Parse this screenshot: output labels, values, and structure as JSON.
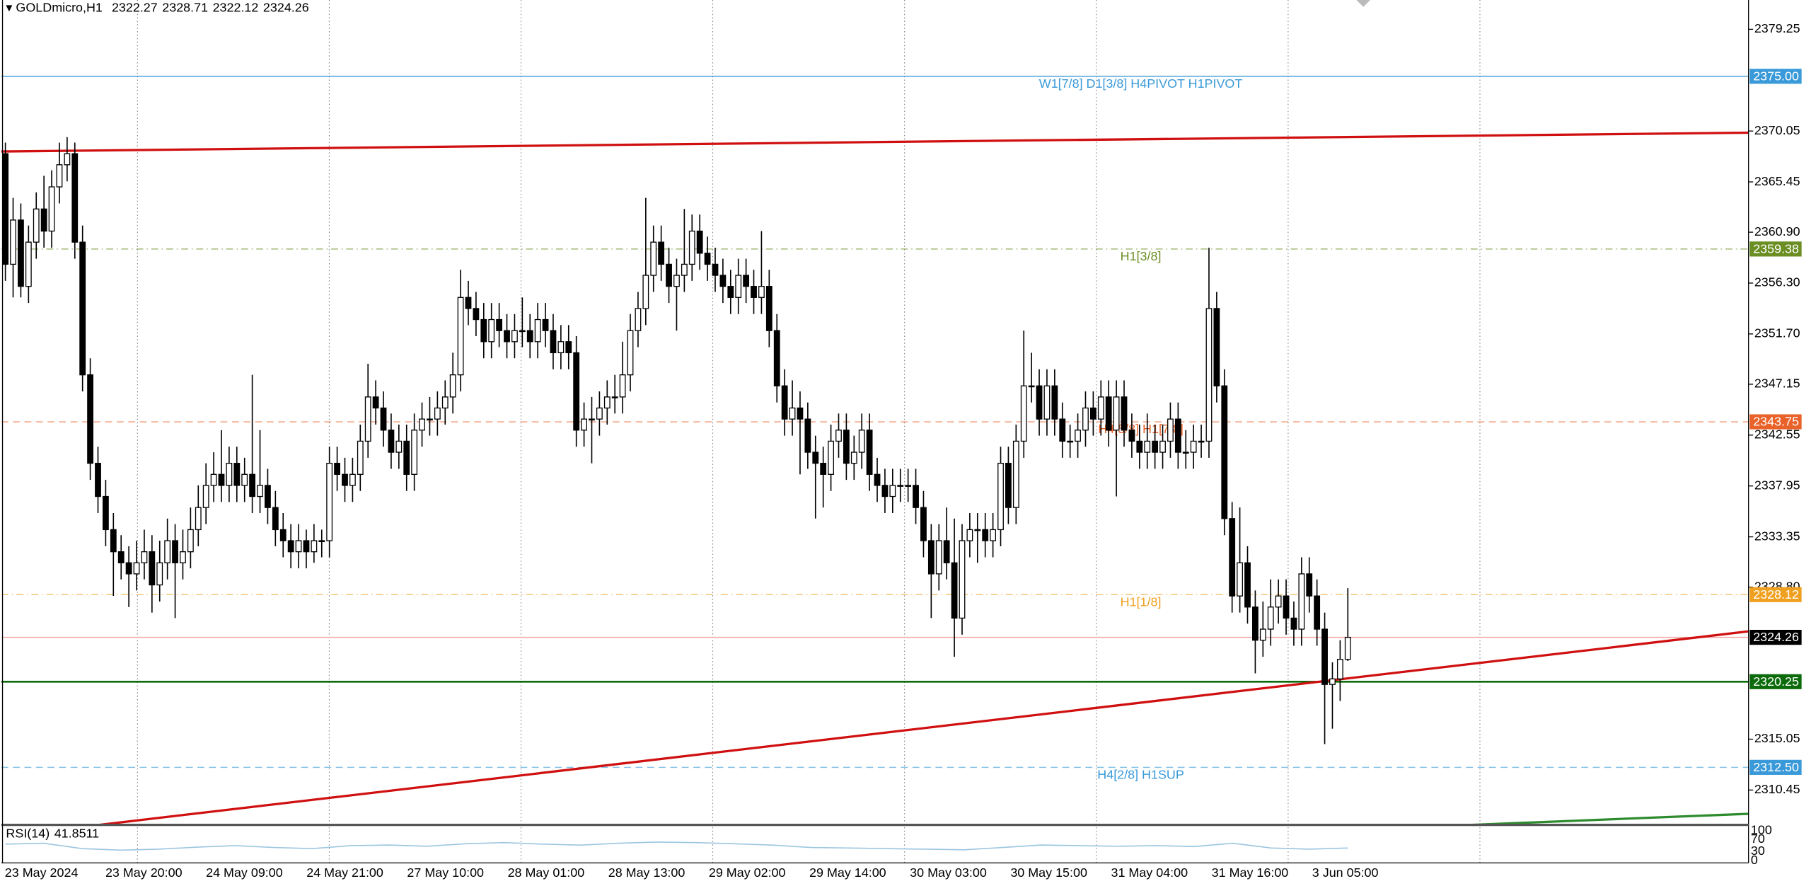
{
  "header": {
    "symbol": "GOLDmicro,H1"
  },
  "chart_data": {
    "type": "candlestick",
    "ylim": [
      2307.3,
      2381.9
    ],
    "yticks": [
      2379.25,
      2370.05,
      2365.45,
      {
        "value": 2360.9,
        "label": "2360.90"
      },
      {
        "value": 2356.3,
        "label": "2356.30"
      },
      {
        "value": 2351.7,
        "label": "2351.70"
      },
      2347.15,
      2342.55,
      2337.95,
      2333.35,
      {
        "value": 2328.8,
        "label": "2328.80"
      },
      2315.05,
      2310.45
    ],
    "categories": [
      "23 May 2024",
      "23 May 20:00",
      "24 May 09:00",
      "24 May 21:00",
      "27 May 10:00",
      "28 May 01:00",
      "28 May 13:00",
      "29 May 02:00",
      "29 May 14:00",
      "30 May 03:00",
      "30 May 15:00",
      "31 May 04:00",
      "31 May 16:00",
      "3 Jun 05:00"
    ],
    "up_color": "#ffffff",
    "down_color": "#000000",
    "levels": [
      {
        "value": 2375,
        "label": "2375.00",
        "text": "W1[7/8] D1[3/8] H4PIVOT H1PIVOT",
        "color": "#3a9ad9",
        "dash": ""
      },
      {
        "value": 2359.38,
        "label": "2359.38",
        "text": "H1[3/8]",
        "color": "#6b8e23",
        "dash": "6 3 1 3"
      },
      {
        "value": 2343.75,
        "label": "2343.75",
        "text": "H4[5/8] H1[7/8]",
        "color": "#e8622a",
        "dash": "6 4"
      },
      {
        "value": 2328.12,
        "label": "2328.12",
        "text": "H1[1/8]",
        "color": "#f0a020",
        "dash": "6 3 1 3"
      },
      {
        "value": 2324.26,
        "color": "#000000",
        "dash": ""
      },
      {
        "value": 2320.25,
        "label": "2320.25",
        "color": "#0b6b0b",
        "dash": ""
      },
      {
        "value": 2312.5,
        "label": "2312.50",
        "text": "H4[2/8] H1SUP",
        "color": "#3a9ad9",
        "dash": "6 4"
      }
    ],
    "trendlines": [
      {
        "color": "#d01010",
        "start": 2368.2,
        "end": 2369.9
      },
      {
        "color": "#d01010",
        "start": 2307.3,
        "end": 2324.8
      },
      {
        "color": "#2e8b2e",
        "start": 2307.3,
        "end": 2308.3
      }
    ],
    "candles": [
      [
        2368,
        2369,
        2356.5,
        2358
      ],
      [
        2358,
        2364,
        2355,
        2362
      ],
      [
        2362,
        2363.5,
        2355,
        2356
      ],
      [
        2356,
        2361.5,
        2354.5,
        2360
      ],
      [
        2360,
        2364.5,
        2358.5,
        2363
      ],
      [
        2363,
        2366,
        2359.5,
        2361
      ],
      [
        2361,
        2366.5,
        2359.5,
        2365
      ],
      [
        2365,
        2369,
        2363.5,
        2367
      ],
      [
        2367,
        2369.5,
        2365.5,
        2368
      ],
      [
        2368,
        2369,
        2358.5,
        2360
      ],
      [
        2360,
        2361.5,
        2346.5,
        2348
      ],
      [
        2348,
        2349.5,
        2338.5,
        2340
      ],
      [
        2340,
        2341.5,
        2335.5,
        2337
      ],
      [
        2337,
        2338.5,
        2332.5,
        2334
      ],
      [
        2334,
        2335.5,
        2328,
        2332
      ],
      [
        2332,
        2333.5,
        2329.5,
        2331
      ],
      [
        2331,
        2332.5,
        2327,
        2330
      ],
      [
        2330,
        2333,
        2328.5,
        2331
      ],
      [
        2331,
        2334,
        2329.5,
        2332
      ],
      [
        2332,
        2333.5,
        2326.5,
        2329
      ],
      [
        2329,
        2333,
        2327.5,
        2331
      ],
      [
        2331,
        2335,
        2329.5,
        2333
      ],
      [
        2333,
        2334.5,
        2326,
        2331
      ],
      [
        2331,
        2334,
        2329.5,
        2332
      ],
      [
        2332,
        2336,
        2330.5,
        2334
      ],
      [
        2334,
        2338,
        2332.5,
        2336
      ],
      [
        2336,
        2340,
        2334.5,
        2338
      ],
      [
        2338,
        2341,
        2336.5,
        2339
      ],
      [
        2339,
        2343,
        2336.5,
        2338
      ],
      [
        2338,
        2341.5,
        2336.5,
        2340
      ],
      [
        2340,
        2341.5,
        2336.5,
        2338
      ],
      [
        2338,
        2340.5,
        2336.5,
        2339
      ],
      [
        2339,
        2348,
        2335.5,
        2337
      ],
      [
        2337,
        2343,
        2335.5,
        2338
      ],
      [
        2338,
        2339.5,
        2334.5,
        2336
      ],
      [
        2336,
        2337.5,
        2332.5,
        2334
      ],
      [
        2334,
        2335.5,
        2331.5,
        2333
      ],
      [
        2333,
        2334.5,
        2330.5,
        2332
      ],
      [
        2332,
        2334.5,
        2330.5,
        2333
      ],
      [
        2333,
        2334,
        2330.5,
        2332
      ],
      [
        2332,
        2334.5,
        2331,
        2333
      ],
      [
        2333,
        2334,
        2331.5,
        2333
      ],
      [
        2333,
        2341.5,
        2331.5,
        2340
      ],
      [
        2340,
        2341.5,
        2337.5,
        2339
      ],
      [
        2339,
        2340.5,
        2336.5,
        2338
      ],
      [
        2338,
        2340.5,
        2336.5,
        2339
      ],
      [
        2339,
        2343.5,
        2337.5,
        2342
      ],
      [
        2342,
        2349,
        2340.5,
        2346
      ],
      [
        2346,
        2347.5,
        2343.5,
        2345
      ],
      [
        2345,
        2346.5,
        2341.5,
        2343
      ],
      [
        2343,
        2344.5,
        2339.5,
        2341
      ],
      [
        2341,
        2343.5,
        2339.5,
        2342
      ],
      [
        2342,
        2343.5,
        2337.5,
        2339
      ],
      [
        2339,
        2344.5,
        2337.5,
        2343
      ],
      [
        2343,
        2345.5,
        2341.5,
        2344
      ],
      [
        2344,
        2346,
        2342.5,
        2344
      ],
      [
        2344,
        2346.5,
        2342.5,
        2345
      ],
      [
        2345,
        2347.5,
        2343.5,
        2346
      ],
      [
        2346,
        2350,
        2344.5,
        2348
      ],
      [
        2348,
        2357.5,
        2346.5,
        2355
      ],
      [
        2355,
        2356.5,
        2352.5,
        2354
      ],
      [
        2354,
        2355.5,
        2351.5,
        2353
      ],
      [
        2353,
        2354.5,
        2349.5,
        2351
      ],
      [
        2351,
        2354.5,
        2349.5,
        2353
      ],
      [
        2353,
        2354.5,
        2350.5,
        2352
      ],
      [
        2352,
        2353.5,
        2349.5,
        2351
      ],
      [
        2351,
        2353.5,
        2349.5,
        2352
      ],
      [
        2352,
        2355,
        2350.5,
        2352
      ],
      [
        2352,
        2353.5,
        2349.5,
        2351
      ],
      [
        2351,
        2354.5,
        2349.5,
        2353
      ],
      [
        2353,
        2354.5,
        2350.5,
        2352
      ],
      [
        2352,
        2353.5,
        2348.5,
        2350
      ],
      [
        2350,
        2352.5,
        2348.5,
        2351
      ],
      [
        2351,
        2352.5,
        2348.5,
        2350
      ],
      [
        2350,
        2351.5,
        2341.5,
        2343
      ],
      [
        2343,
        2345.5,
        2341.5,
        2344
      ],
      [
        2344,
        2346,
        2340,
        2344
      ],
      [
        2344,
        2346.5,
        2342.5,
        2345
      ],
      [
        2345,
        2347.5,
        2343.5,
        2346
      ],
      [
        2346,
        2348,
        2344.5,
        2346
      ],
      [
        2346,
        2351,
        2344.5,
        2348
      ],
      [
        2348,
        2353.5,
        2346.5,
        2352
      ],
      [
        2352,
        2355.5,
        2350.5,
        2354
      ],
      [
        2354,
        2364,
        2352.5,
        2357
      ],
      [
        2357,
        2361.5,
        2355.5,
        2360
      ],
      [
        2360,
        2361.5,
        2356.5,
        2358
      ],
      [
        2358,
        2359.5,
        2354.5,
        2356
      ],
      [
        2356,
        2358.5,
        2352,
        2357
      ],
      [
        2357,
        2363,
        2355.5,
        2358
      ],
      [
        2358,
        2362.5,
        2356.5,
        2361
      ],
      [
        2361,
        2362.5,
        2357.5,
        2359
      ],
      [
        2359,
        2360.5,
        2356.5,
        2358
      ],
      [
        2358,
        2359.5,
        2355.5,
        2357
      ],
      [
        2357,
        2358.5,
        2354.5,
        2356
      ],
      [
        2356,
        2357.5,
        2353.5,
        2355
      ],
      [
        2355,
        2358.5,
        2353.5,
        2357
      ],
      [
        2357,
        2358.5,
        2354.5,
        2356
      ],
      [
        2356,
        2357.5,
        2353.5,
        2355
      ],
      [
        2355,
        2361,
        2353.5,
        2356
      ],
      [
        2356,
        2357.5,
        2350.5,
        2352
      ],
      [
        2352,
        2353.5,
        2345.5,
        2347
      ],
      [
        2347,
        2348.5,
        2342.5,
        2344
      ],
      [
        2344,
        2347.5,
        2342.5,
        2345
      ],
      [
        2345,
        2346.5,
        2339,
        2344
      ],
      [
        2344,
        2345.5,
        2339.5,
        2341
      ],
      [
        2341,
        2342.5,
        2335,
        2340
      ],
      [
        2340,
        2341.5,
        2336,
        2339
      ],
      [
        2339,
        2343.5,
        2337.5,
        2342
      ],
      [
        2342,
        2344.5,
        2340.5,
        2343
      ],
      [
        2343,
        2344.5,
        2338.5,
        2340
      ],
      [
        2340,
        2342.5,
        2338.5,
        2341
      ],
      [
        2341,
        2344.5,
        2339.5,
        2343
      ],
      [
        2343,
        2344.5,
        2337.5,
        2339
      ],
      [
        2339,
        2340.5,
        2336.5,
        2338
      ],
      [
        2338,
        2339.5,
        2335.5,
        2337
      ],
      [
        2337,
        2339.5,
        2335.5,
        2338
      ],
      [
        2338,
        2339.5,
        2336.5,
        2338
      ],
      [
        2338,
        2339.5,
        2336.5,
        2338
      ],
      [
        2338,
        2339.5,
        2334.5,
        2336
      ],
      [
        2336,
        2337.5,
        2331.5,
        2333
      ],
      [
        2333,
        2334.5,
        2326,
        2330
      ],
      [
        2330,
        2334.5,
        2328.5,
        2333
      ],
      [
        2333,
        2336,
        2329.5,
        2331
      ],
      [
        2331,
        2335,
        2322.5,
        2326
      ],
      [
        2326,
        2334.5,
        2324.5,
        2333
      ],
      [
        2333,
        2335.5,
        2331.5,
        2334
      ],
      [
        2334,
        2335.5,
        2331,
        2334
      ],
      [
        2334,
        2335.5,
        2331.5,
        2333
      ],
      [
        2333,
        2335.5,
        2331.5,
        2334
      ],
      [
        2334,
        2341.5,
        2332.5,
        2340
      ],
      [
        2340,
        2341.5,
        2334.5,
        2336
      ],
      [
        2336,
        2343.5,
        2334.5,
        2342
      ],
      [
        2342,
        2352,
        2340.5,
        2347
      ],
      [
        2347,
        2350,
        2345.5,
        2347
      ],
      [
        2347,
        2348.5,
        2342.5,
        2344
      ],
      [
        2344,
        2348.5,
        2342.5,
        2347
      ],
      [
        2347,
        2348.5,
        2342.5,
        2344
      ],
      [
        2344,
        2345.5,
        2340.5,
        2342
      ],
      [
        2342,
        2343.5,
        2340.5,
        2342
      ],
      [
        2342,
        2344.5,
        2340.5,
        2343
      ],
      [
        2343,
        2346.5,
        2341.5,
        2345
      ],
      [
        2345,
        2346.5,
        2342.5,
        2344
      ],
      [
        2344,
        2347.5,
        2342.5,
        2346
      ],
      [
        2346,
        2347.5,
        2341.5,
        2343
      ],
      [
        2343,
        2347.5,
        2337,
        2346
      ],
      [
        2346,
        2347.5,
        2341.5,
        2343
      ],
      [
        2343,
        2344.5,
        2340.5,
        2342
      ],
      [
        2342,
        2343.5,
        2339.5,
        2341
      ],
      [
        2341,
        2344.5,
        2339.5,
        2342
      ],
      [
        2342,
        2343.5,
        2339.5,
        2341
      ],
      [
        2341,
        2343.5,
        2339.5,
        2342
      ],
      [
        2342,
        2345.5,
        2340.5,
        2344
      ],
      [
        2344,
        2345.5,
        2339.5,
        2341
      ],
      [
        2341,
        2343,
        2339.5,
        2341
      ],
      [
        2341,
        2343.5,
        2339.5,
        2342
      ],
      [
        2342,
        2343.5,
        2340.5,
        2342
      ],
      [
        2342,
        2359.5,
        2340.5,
        2354
      ],
      [
        2354,
        2355.5,
        2345.5,
        2347
      ],
      [
        2347,
        2348.5,
        2333.5,
        2335
      ],
      [
        2335,
        2336.5,
        2326.5,
        2328
      ],
      [
        2328,
        2336,
        2326.5,
        2331
      ],
      [
        2331,
        2332.5,
        2325.5,
        2327
      ],
      [
        2327,
        2328.5,
        2321,
        2324
      ],
      [
        2324,
        2327.5,
        2322.5,
        2325
      ],
      [
        2325,
        2329.5,
        2323.5,
        2327
      ],
      [
        2327,
        2329.5,
        2325.5,
        2328
      ],
      [
        2328,
        2329.5,
        2324.5,
        2326
      ],
      [
        2326,
        2327.5,
        2323.5,
        2325
      ],
      [
        2325,
        2331.5,
        2323.5,
        2330
      ],
      [
        2330,
        2331.5,
        2326.5,
        2328
      ],
      [
        2328,
        2329.5,
        2323.5,
        2325
      ],
      [
        2325,
        2326.5,
        2314.6,
        2320
      ],
      [
        2320,
        2322,
        2316,
        2320.5
      ],
      [
        2320.5,
        2324,
        2318.5,
        2322.27
      ],
      [
        2322.27,
        2328.71,
        2322.12,
        2324.26
      ]
    ],
    "rsi": {
      "name": "RSI(14)",
      "value": 41.8511,
      "color": "#9cc6e0",
      "ylim": [
        0,
        100
      ],
      "yticks": [
        100,
        70,
        30,
        0
      ],
      "values": [
        55,
        58,
        40,
        35,
        38,
        45,
        50,
        44,
        40,
        50,
        52,
        48,
        56,
        60,
        55,
        52,
        58,
        62,
        60,
        56,
        52,
        44,
        42,
        40,
        38,
        36,
        44,
        52,
        50,
        48,
        50,
        47,
        58,
        42,
        38,
        41.8511
      ]
    }
  }
}
